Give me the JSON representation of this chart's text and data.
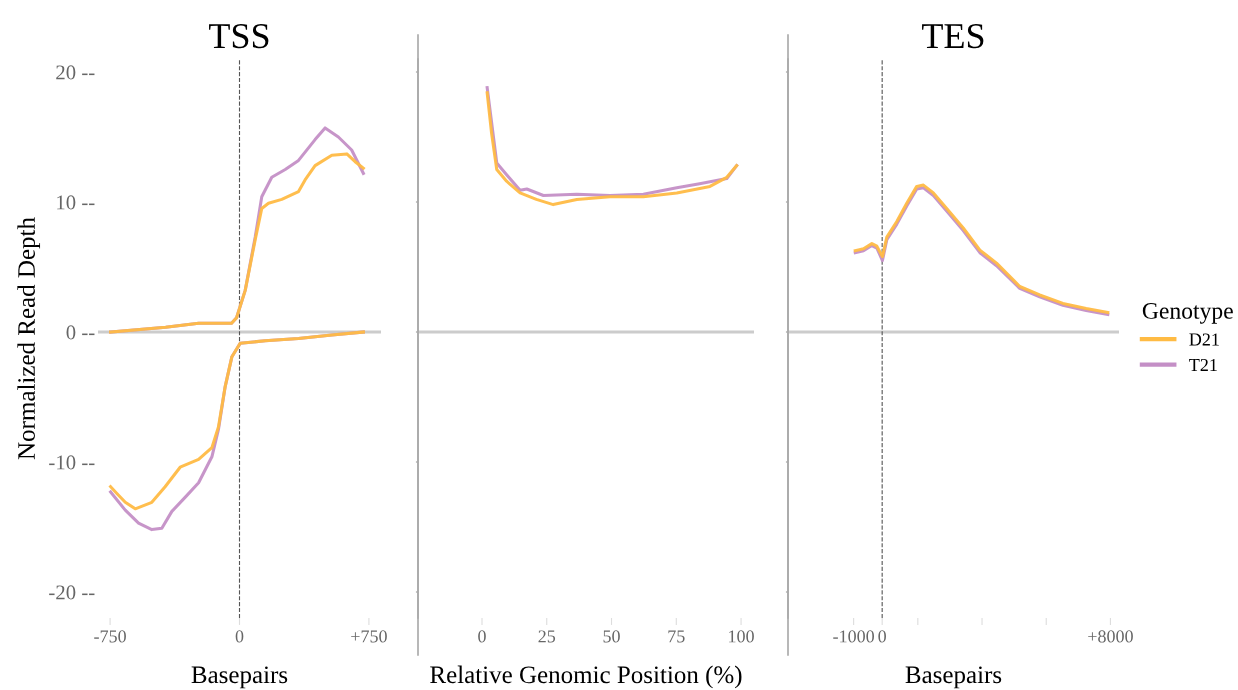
{
  "chart_data": [
    {
      "type": "line",
      "title": "TSS",
      "xlabel": "Basepairs",
      "ylabel": "Normalized Read Depth",
      "xlim": [
        -820,
        820
      ],
      "ylim": [
        -22,
        21
      ],
      "xticks": [
        -750,
        0,
        {
          "value": 750,
          "label": "+750"
        }
      ],
      "yticks": [
        {
          "value": -20,
          "label": "-20 --"
        },
        {
          "value": -10,
          "label": "-10 --"
        },
        {
          "value": 0,
          "label": "0 --"
        },
        {
          "value": 10,
          "label": "10 --"
        },
        {
          "value": 20,
          "label": "20 --"
        }
      ],
      "grid": false,
      "legend": false,
      "ref_lines": [
        {
          "axis": "y",
          "value": 0,
          "color": "#cccccc",
          "line_style": "solid"
        },
        {
          "axis": "x",
          "value": 0,
          "color": "#555555",
          "line_style": "dashed"
        }
      ],
      "series": [
        {
          "color": "#c48fc6",
          "x": [
            -747,
            -428,
            -237,
            -46,
            -17,
            33,
            91,
            129,
            187,
            265,
            342,
            438,
            496,
            573,
            650,
            718
          ],
          "values": [
            0,
            0.36,
            0.67,
            0.67,
            1.1,
            3.2,
            7.3,
            10.4,
            11.9,
            12.5,
            13.2,
            14.8,
            15.7,
            15.0,
            14.0,
            12.2
          ]
        },
        {
          "color": "#ffbb44",
          "x": [
            -747,
            -428,
            -237,
            -46,
            -17,
            33,
            91,
            129,
            168,
            245,
            342,
            380,
            438,
            535,
            622,
            670,
            718
          ],
          "values": [
            0,
            0.36,
            0.67,
            0.67,
            1.1,
            3.2,
            7.1,
            9.5,
            9.9,
            10.2,
            10.8,
            11.7,
            12.8,
            13.6,
            13.7,
            13.1,
            12.6
          ]
        },
        {
          "color": "#c48fc6",
          "x": [
            -747,
            -662,
            -585,
            -508,
            -450,
            -392,
            -314,
            -237,
            -160,
            -122,
            -83,
            -44,
            4,
            149,
            342,
            535,
            718
          ],
          "values": [
            -12.3,
            -13.7,
            -14.7,
            -15.2,
            -15.1,
            -13.8,
            -12.7,
            -11.6,
            -9.6,
            -7.5,
            -4.2,
            -1.9,
            -0.87,
            -0.67,
            -0.5,
            -0.23,
            0
          ]
        },
        {
          "color": "#ffbb44",
          "x": [
            -747,
            -712,
            -662,
            -604,
            -508,
            -431,
            -344,
            -237,
            -160,
            -122,
            -83,
            -44,
            4,
            149,
            342,
            535,
            718
          ],
          "values": [
            -11.9,
            -12.4,
            -13.1,
            -13.6,
            -13.1,
            -11.9,
            -10.4,
            -9.8,
            -8.9,
            -7.3,
            -4.2,
            -1.9,
            -0.87,
            -0.67,
            -0.5,
            -0.23,
            0
          ]
        }
      ]
    },
    {
      "type": "line",
      "xlabel": "Relative Genomic Position (%)",
      "xlim": [
        -24.7,
        105
      ],
      "ylim": [
        -22,
        21
      ],
      "xticks": [
        0,
        25,
        50,
        75,
        100
      ],
      "yticks": [
        -20,
        -10,
        0,
        10,
        20
      ],
      "tick_labels": "x",
      "grid": false,
      "legend": false,
      "ref_lines": [
        {
          "axis": "y",
          "value": 0,
          "color": "#cccccc",
          "line_style": "solid"
        }
      ],
      "series": [
        {
          "color": "#c48fc6",
          "x": [
            2,
            5.7,
            9.5,
            14.7,
            17.3,
            23.7,
            36.6,
            49.4,
            62.3,
            75.2,
            84,
            94.5,
            98.3
          ],
          "values": [
            18.8,
            13.0,
            12.1,
            10.9,
            11.0,
            10.5,
            10.6,
            10.5,
            10.6,
            11.1,
            11.4,
            11.8,
            12.8
          ]
        },
        {
          "color": "#ffbb44",
          "x": [
            2,
            3.7,
            5.7,
            9.5,
            14.7,
            21,
            27.5,
            36.6,
            49.4,
            62.3,
            75.2,
            88,
            94.5,
            98.3
          ],
          "values": [
            18.4,
            15.3,
            12.5,
            11.6,
            10.7,
            10.2,
            9.8,
            10.2,
            10.4,
            10.4,
            10.7,
            11.2,
            11.9,
            12.8
          ]
        }
      ]
    },
    {
      "type": "line",
      "title": "TES",
      "xlabel": "Basepairs",
      "legend_title": "Genotype",
      "xlim": [
        -3300,
        8300
      ],
      "ylim": [
        -22,
        21
      ],
      "xticks": [
        -1000,
        0,
        {
          "value": 1250,
          "label": null
        },
        {
          "value": 3500,
          "label": null
        },
        {
          "value": 5750,
          "label": null
        },
        {
          "value": 8000,
          "label": "+8000"
        }
      ],
      "yticks": [
        -20,
        -10,
        0,
        10,
        20
      ],
      "tick_labels": "x",
      "grid": false,
      "legend": "right",
      "ref_lines": [
        {
          "axis": "y",
          "value": 0,
          "color": "#cccccc",
          "line_style": "solid"
        },
        {
          "axis": "x",
          "value": 0,
          "color": "#555555",
          "line_style": "dashed"
        }
      ],
      "series": [
        {
          "name": "T21",
          "color": "#c48fc6",
          "x": [
            -943,
            -653,
            -361,
            -186,
            10,
            163,
            513,
            862,
            1212,
            1445,
            1795,
            2261,
            2841,
            3425,
            4008,
            4822,
            5520,
            6335,
            7150,
            7908
          ],
          "values": [
            6.1,
            6.25,
            6.65,
            6.45,
            5.5,
            7.1,
            8.3,
            9.7,
            11.0,
            11.1,
            10.5,
            9.3,
            7.8,
            6.1,
            5.1,
            3.35,
            2.7,
            2.05,
            1.65,
            1.35
          ]
        },
        {
          "name": "D21",
          "color": "#ffbb44",
          "x": [
            -943,
            -653,
            -361,
            -186,
            10,
            163,
            513,
            862,
            1212,
            1445,
            1795,
            2261,
            2841,
            3425,
            4008,
            4822,
            5520,
            6335,
            7150,
            7908
          ],
          "values": [
            6.25,
            6.4,
            6.8,
            6.6,
            5.8,
            7.3,
            8.5,
            9.9,
            11.2,
            11.3,
            10.7,
            9.5,
            8.0,
            6.3,
            5.3,
            3.5,
            2.85,
            2.2,
            1.8,
            1.5
          ]
        }
      ]
    }
  ]
}
